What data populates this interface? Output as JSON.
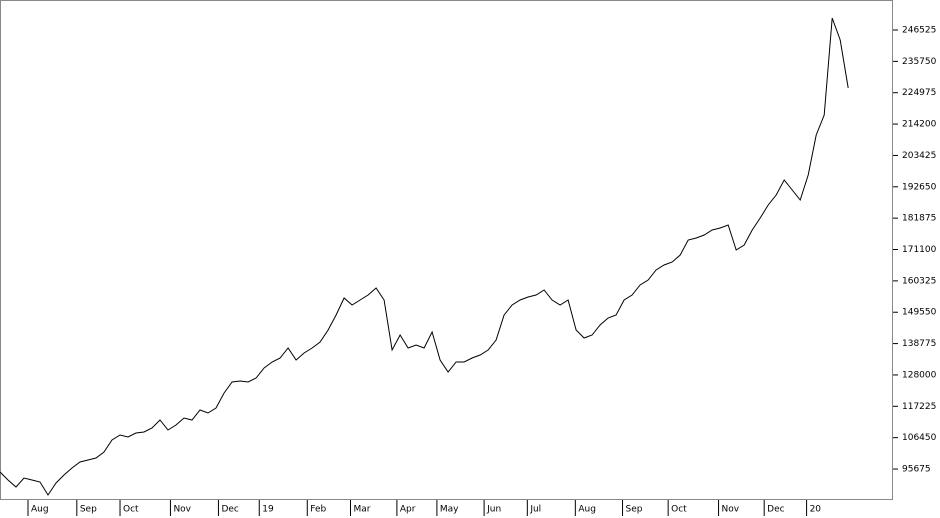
{
  "chart_data": {
    "type": "line",
    "series": [
      {
        "color": "#000000",
        "values": [
          94654,
          91905,
          89500,
          92592,
          91905,
          91218,
          86751,
          90874,
          93623,
          96028,
          98090,
          98777,
          99464,
          101526,
          105649,
          107367,
          106680,
          108054,
          108398,
          109772,
          112521,
          109085,
          110803,
          113208,
          112521,
          115957,
          114926,
          116644,
          121798,
          125578,
          125921,
          125578,
          126952,
          130388,
          132450,
          133824,
          137260,
          133137,
          135542,
          137260,
          139322,
          143445,
          148599,
          154440,
          152035,
          153753,
          155471,
          157876,
          153753,
          136573,
          141727,
          137260,
          138291,
          137260,
          142758,
          133137,
          129014,
          132450,
          132450,
          133824,
          134855,
          136573,
          140009,
          148599,
          152035,
          153753,
          154784,
          155471,
          157189,
          153753,
          152035,
          153753,
          143445,
          140696,
          141727,
          145163,
          147568,
          148599,
          153753,
          155471,
          158907,
          160625,
          164061,
          165779,
          166810,
          169215,
          174369,
          175056,
          176087,
          177805,
          178492,
          179523,
          170933,
          172651,
          177805,
          181928,
          186395,
          189831,
          194985,
          191549,
          188113,
          196703,
          210447,
          217319,
          250648,
          243089,
          226596
        ]
      }
    ],
    "xlim": [
      0,
      111.6
    ],
    "xticks": [
      {
        "value": 3.5,
        "label": "Aug"
      },
      {
        "value": 9.6,
        "label": "Sep"
      },
      {
        "value": 15,
        "label": "Oct"
      },
      {
        "value": 21.3,
        "label": "Nov"
      },
      {
        "value": 27.3,
        "label": "Dec"
      },
      {
        "value": 32.4,
        "label": "19"
      },
      {
        "value": 38.4,
        "label": "Feb"
      },
      {
        "value": 43.8,
        "label": "Mar"
      },
      {
        "value": 49.6,
        "label": "Apr"
      },
      {
        "value": 54.6,
        "label": "May"
      },
      {
        "value": 60.5,
        "label": "Jun"
      },
      {
        "value": 65.9,
        "label": "Jul"
      },
      {
        "value": 71.9,
        "label": "Aug"
      },
      {
        "value": 77.8,
        "label": "Sep"
      },
      {
        "value": 83.5,
        "label": "Oct"
      },
      {
        "value": 89.8,
        "label": "Nov"
      },
      {
        "value": 95.5,
        "label": "Dec"
      },
      {
        "value": 100.8,
        "label": "20"
      }
    ],
    "ylim": [
      85033,
      256833
    ],
    "yticks": [
      95675,
      106450,
      117225,
      128000,
      138775,
      149550,
      160325,
      171100,
      181875,
      192650,
      203425,
      214200,
      224975,
      235750,
      246525
    ]
  }
}
